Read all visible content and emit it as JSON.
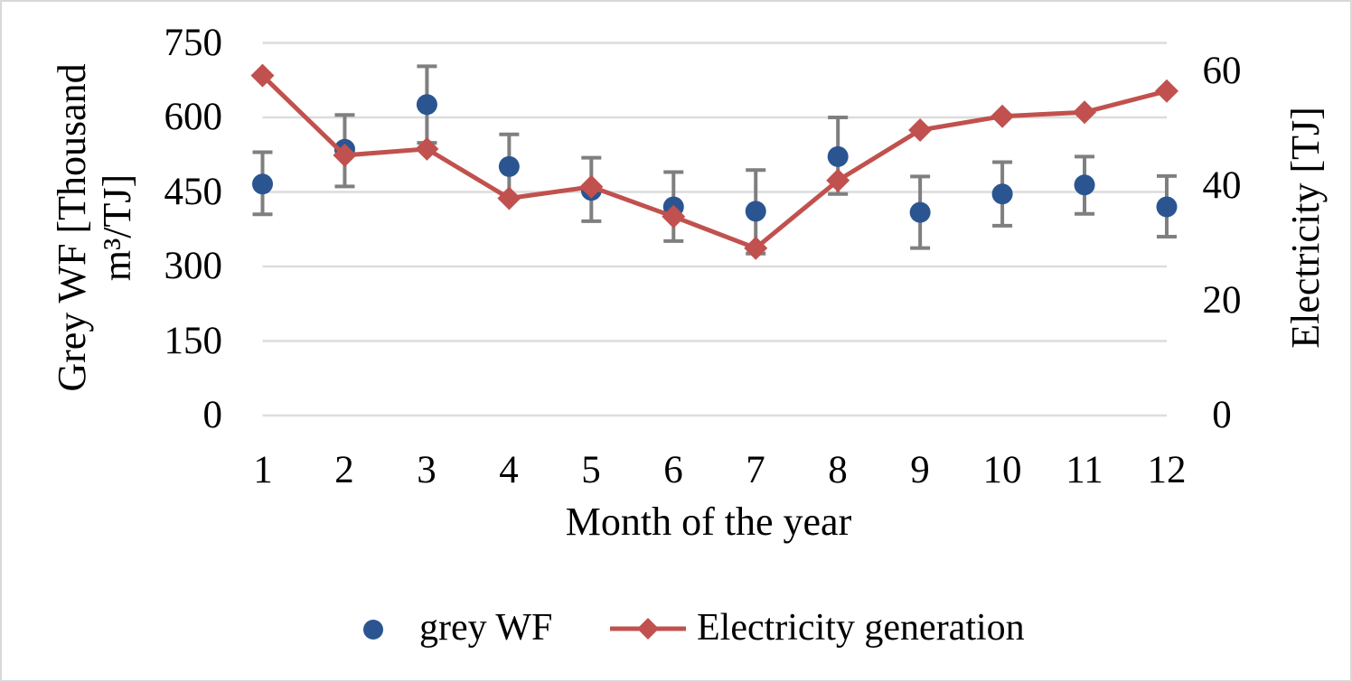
{
  "figure": {
    "background": "#ffffff",
    "border_color": "#d8d8d8"
  },
  "chart_data": {
    "type": "scatter+line (dual y-axis)",
    "title": "",
    "x": [
      1,
      2,
      3,
      4,
      5,
      6,
      7,
      8,
      9,
      10,
      11,
      12
    ],
    "xlabel": "Month of the year",
    "x_range": [
      1,
      12
    ],
    "y_left": {
      "title_line1": "Grey WF [Thousand",
      "title_line2": "m³/TJ]",
      "ticks": [
        0,
        150,
        300,
        450,
        600,
        750
      ],
      "range": [
        0,
        750
      ]
    },
    "y_right": {
      "title": "Electricity [TJ]",
      "ticks": [
        0,
        20,
        40,
        60
      ],
      "range": [
        0,
        65
      ]
    },
    "gridlines": {
      "horizontal": true,
      "vertical": false,
      "color": "#dcdcdc"
    },
    "series": [
      {
        "name": "grey WF",
        "type": "scatter",
        "axis": "left",
        "marker": "circle",
        "color": "#2a5591",
        "values": [
          466,
          536,
          626,
          501,
          453,
          420,
          411,
          521,
          409,
          446,
          464,
          420
        ],
        "error_low": [
          405,
          461,
          549,
          437,
          391,
          351,
          326,
          446,
          337,
          382,
          406,
          360
        ],
        "error_high": [
          530,
          605,
          703,
          566,
          519,
          490,
          494,
          600,
          481,
          510,
          521,
          482
        ],
        "error_color": "#7f7f7f"
      },
      {
        "name": "Electricity generation",
        "type": "line",
        "axis": "right",
        "marker": "diamond",
        "color": "#c1514e",
        "values": [
          59.3,
          45.4,
          46.5,
          37.9,
          39.9,
          34.7,
          29.2,
          41.0,
          49.8,
          52.2,
          52.9,
          56.6
        ]
      }
    ],
    "legend": {
      "position": "bottom",
      "items": [
        "grey WF",
        "Electricity generation"
      ]
    }
  }
}
